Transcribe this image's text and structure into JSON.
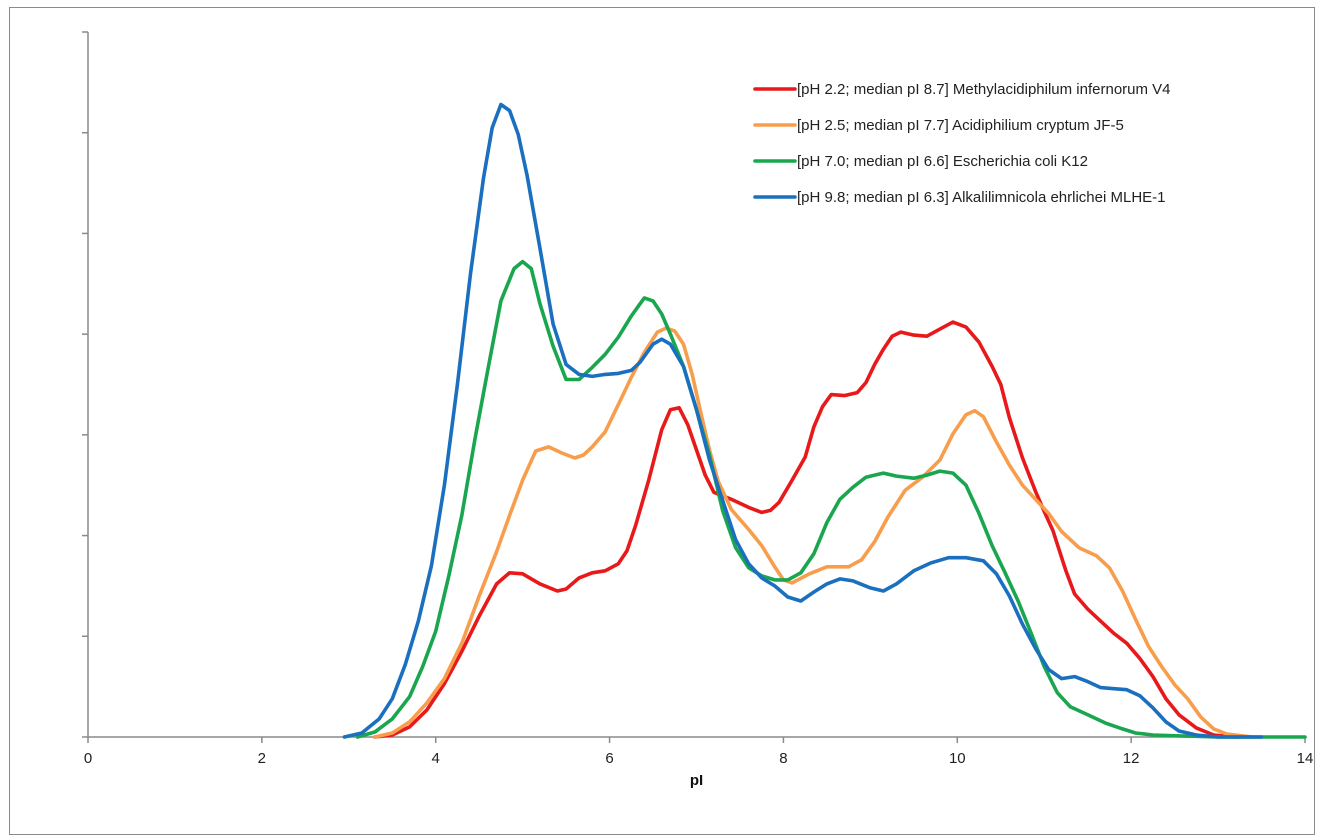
{
  "chart_data": {
    "type": "line",
    "title": "",
    "xlabel": "pI",
    "ylabel": "",
    "xlim": [
      0,
      14
    ],
    "ylim": [
      0,
      7
    ],
    "x_ticks": [
      0,
      2,
      4,
      6,
      8,
      10,
      12,
      14
    ],
    "x_tick_labels": [
      "0",
      "2",
      "4",
      "6",
      "8",
      "10",
      "12",
      "14"
    ],
    "y_ticks": [
      0,
      1,
      2,
      3,
      4,
      5,
      6,
      7
    ],
    "y_tick_labels_shown": false,
    "grid": false,
    "legend_position": "top-right",
    "series": [
      {
        "name": "[pH 2.2; median pI 8.7] Methylacidiphilum infernorum V4",
        "color": "#e8191a",
        "points": [
          [
            3.3,
            0
          ],
          [
            3.5,
            0.02
          ],
          [
            3.7,
            0.1
          ],
          [
            3.9,
            0.27
          ],
          [
            4.1,
            0.53
          ],
          [
            4.3,
            0.85
          ],
          [
            4.5,
            1.2
          ],
          [
            4.7,
            1.52
          ],
          [
            4.85,
            1.63
          ],
          [
            5.0,
            1.62
          ],
          [
            5.2,
            1.52
          ],
          [
            5.4,
            1.45
          ],
          [
            5.5,
            1.47
          ],
          [
            5.65,
            1.58
          ],
          [
            5.8,
            1.63
          ],
          [
            5.95,
            1.65
          ],
          [
            6.1,
            1.72
          ],
          [
            6.2,
            1.85
          ],
          [
            6.3,
            2.1
          ],
          [
            6.45,
            2.55
          ],
          [
            6.6,
            3.05
          ],
          [
            6.7,
            3.25
          ],
          [
            6.8,
            3.27
          ],
          [
            6.9,
            3.1
          ],
          [
            7.0,
            2.85
          ],
          [
            7.1,
            2.6
          ],
          [
            7.2,
            2.43
          ],
          [
            7.4,
            2.36
          ],
          [
            7.6,
            2.28
          ],
          [
            7.75,
            2.23
          ],
          [
            7.85,
            2.25
          ],
          [
            7.95,
            2.33
          ],
          [
            8.1,
            2.55
          ],
          [
            8.25,
            2.78
          ],
          [
            8.35,
            3.08
          ],
          [
            8.45,
            3.28
          ],
          [
            8.55,
            3.4
          ],
          [
            8.7,
            3.39
          ],
          [
            8.85,
            3.42
          ],
          [
            8.95,
            3.52
          ],
          [
            9.05,
            3.7
          ],
          [
            9.15,
            3.85
          ],
          [
            9.25,
            3.98
          ],
          [
            9.35,
            4.02
          ],
          [
            9.5,
            3.99
          ],
          [
            9.65,
            3.98
          ],
          [
            9.8,
            4.05
          ],
          [
            9.95,
            4.12
          ],
          [
            10.1,
            4.07
          ],
          [
            10.25,
            3.92
          ],
          [
            10.4,
            3.68
          ],
          [
            10.5,
            3.5
          ],
          [
            10.6,
            3.17
          ],
          [
            10.75,
            2.77
          ],
          [
            10.9,
            2.44
          ],
          [
            11.0,
            2.24
          ],
          [
            11.1,
            2.05
          ],
          [
            11.25,
            1.65
          ],
          [
            11.35,
            1.42
          ],
          [
            11.5,
            1.27
          ],
          [
            11.65,
            1.15
          ],
          [
            11.8,
            1.03
          ],
          [
            11.95,
            0.93
          ],
          [
            12.1,
            0.78
          ],
          [
            12.25,
            0.6
          ],
          [
            12.4,
            0.38
          ],
          [
            12.55,
            0.22
          ],
          [
            12.75,
            0.09
          ],
          [
            12.95,
            0.02
          ],
          [
            13.2,
            0
          ]
        ]
      },
      {
        "name": "[pH 2.5; median pI 7.7] Acidiphilium cryptum JF-5",
        "color": "#f79d4c",
        "points": [
          [
            3.3,
            0
          ],
          [
            3.5,
            0.04
          ],
          [
            3.7,
            0.15
          ],
          [
            3.9,
            0.34
          ],
          [
            4.1,
            0.58
          ],
          [
            4.3,
            0.93
          ],
          [
            4.5,
            1.4
          ],
          [
            4.7,
            1.84
          ],
          [
            4.85,
            2.2
          ],
          [
            5.0,
            2.55
          ],
          [
            5.15,
            2.84
          ],
          [
            5.3,
            2.88
          ],
          [
            5.45,
            2.82
          ],
          [
            5.6,
            2.77
          ],
          [
            5.7,
            2.8
          ],
          [
            5.8,
            2.88
          ],
          [
            5.95,
            3.03
          ],
          [
            6.1,
            3.3
          ],
          [
            6.25,
            3.57
          ],
          [
            6.4,
            3.82
          ],
          [
            6.55,
            4.02
          ],
          [
            6.65,
            4.06
          ],
          [
            6.75,
            4.03
          ],
          [
            6.85,
            3.9
          ],
          [
            6.95,
            3.6
          ],
          [
            7.05,
            3.22
          ],
          [
            7.15,
            2.85
          ],
          [
            7.25,
            2.54
          ],
          [
            7.4,
            2.26
          ],
          [
            7.6,
            2.06
          ],
          [
            7.75,
            1.9
          ],
          [
            7.9,
            1.69
          ],
          [
            8.0,
            1.56
          ],
          [
            8.1,
            1.53
          ],
          [
            8.3,
            1.62
          ],
          [
            8.5,
            1.69
          ],
          [
            8.75,
            1.69
          ],
          [
            8.9,
            1.76
          ],
          [
            9.05,
            1.94
          ],
          [
            9.2,
            2.18
          ],
          [
            9.4,
            2.45
          ],
          [
            9.6,
            2.58
          ],
          [
            9.8,
            2.75
          ],
          [
            9.95,
            3.01
          ],
          [
            10.1,
            3.2
          ],
          [
            10.2,
            3.24
          ],
          [
            10.3,
            3.18
          ],
          [
            10.45,
            2.93
          ],
          [
            10.6,
            2.7
          ],
          [
            10.75,
            2.5
          ],
          [
            10.9,
            2.36
          ],
          [
            11.05,
            2.22
          ],
          [
            11.2,
            2.04
          ],
          [
            11.4,
            1.88
          ],
          [
            11.6,
            1.8
          ],
          [
            11.75,
            1.68
          ],
          [
            11.9,
            1.45
          ],
          [
            12.05,
            1.17
          ],
          [
            12.2,
            0.9
          ],
          [
            12.35,
            0.7
          ],
          [
            12.5,
            0.52
          ],
          [
            12.65,
            0.38
          ],
          [
            12.8,
            0.2
          ],
          [
            12.95,
            0.08
          ],
          [
            13.1,
            0.03
          ],
          [
            13.4,
            0
          ]
        ]
      },
      {
        "name": "[pH 7.0; median pI 6.6] Escherichia coli K12",
        "color": "#1aa64e",
        "points": [
          [
            3.1,
            0
          ],
          [
            3.3,
            0.05
          ],
          [
            3.5,
            0.18
          ],
          [
            3.7,
            0.4
          ],
          [
            3.85,
            0.7
          ],
          [
            4.0,
            1.05
          ],
          [
            4.15,
            1.6
          ],
          [
            4.3,
            2.2
          ],
          [
            4.45,
            2.95
          ],
          [
            4.6,
            3.65
          ],
          [
            4.75,
            4.33
          ],
          [
            4.9,
            4.65
          ],
          [
            5.0,
            4.72
          ],
          [
            5.1,
            4.65
          ],
          [
            5.2,
            4.3
          ],
          [
            5.35,
            3.88
          ],
          [
            5.5,
            3.55
          ],
          [
            5.65,
            3.55
          ],
          [
            5.8,
            3.67
          ],
          [
            5.95,
            3.8
          ],
          [
            6.1,
            3.97
          ],
          [
            6.25,
            4.18
          ],
          [
            6.4,
            4.36
          ],
          [
            6.5,
            4.33
          ],
          [
            6.6,
            4.2
          ],
          [
            6.7,
            4.0
          ],
          [
            6.85,
            3.68
          ],
          [
            7.0,
            3.25
          ],
          [
            7.15,
            2.8
          ],
          [
            7.3,
            2.25
          ],
          [
            7.45,
            1.88
          ],
          [
            7.6,
            1.68
          ],
          [
            7.75,
            1.6
          ],
          [
            7.9,
            1.56
          ],
          [
            8.05,
            1.56
          ],
          [
            8.2,
            1.63
          ],
          [
            8.35,
            1.82
          ],
          [
            8.5,
            2.13
          ],
          [
            8.65,
            2.36
          ],
          [
            8.8,
            2.48
          ],
          [
            8.95,
            2.58
          ],
          [
            9.05,
            2.6
          ],
          [
            9.15,
            2.62
          ],
          [
            9.3,
            2.59
          ],
          [
            9.5,
            2.57
          ],
          [
            9.65,
            2.6
          ],
          [
            9.8,
            2.64
          ],
          [
            9.95,
            2.62
          ],
          [
            10.1,
            2.5
          ],
          [
            10.25,
            2.22
          ],
          [
            10.4,
            1.9
          ],
          [
            10.55,
            1.63
          ],
          [
            10.7,
            1.35
          ],
          [
            10.85,
            1.03
          ],
          [
            11.0,
            0.7
          ],
          [
            11.15,
            0.44
          ],
          [
            11.3,
            0.3
          ],
          [
            11.5,
            0.22
          ],
          [
            11.7,
            0.14
          ],
          [
            11.9,
            0.08
          ],
          [
            12.05,
            0.04
          ],
          [
            12.25,
            0.02
          ],
          [
            12.6,
            0.01
          ],
          [
            13,
            0
          ],
          [
            14,
            0
          ]
        ]
      },
      {
        "name": "[pH 9.8; median pI 6.3] Alkalilimnicola ehrlichei MLHE-1",
        "color": "#1a70bf",
        "points": [
          [
            2.95,
            0
          ],
          [
            3.15,
            0.04
          ],
          [
            3.35,
            0.18
          ],
          [
            3.5,
            0.38
          ],
          [
            3.65,
            0.72
          ],
          [
            3.8,
            1.15
          ],
          [
            3.95,
            1.7
          ],
          [
            4.1,
            2.5
          ],
          [
            4.25,
            3.5
          ],
          [
            4.4,
            4.6
          ],
          [
            4.55,
            5.55
          ],
          [
            4.65,
            6.05
          ],
          [
            4.75,
            6.28
          ],
          [
            4.85,
            6.22
          ],
          [
            4.95,
            5.98
          ],
          [
            5.05,
            5.58
          ],
          [
            5.2,
            4.85
          ],
          [
            5.35,
            4.1
          ],
          [
            5.5,
            3.7
          ],
          [
            5.65,
            3.6
          ],
          [
            5.8,
            3.58
          ],
          [
            5.95,
            3.6
          ],
          [
            6.1,
            3.61
          ],
          [
            6.25,
            3.64
          ],
          [
            6.35,
            3.72
          ],
          [
            6.5,
            3.9
          ],
          [
            6.6,
            3.95
          ],
          [
            6.7,
            3.9
          ],
          [
            6.85,
            3.68
          ],
          [
            7.0,
            3.25
          ],
          [
            7.15,
            2.75
          ],
          [
            7.3,
            2.35
          ],
          [
            7.45,
            1.96
          ],
          [
            7.6,
            1.72
          ],
          [
            7.75,
            1.58
          ],
          [
            7.9,
            1.5
          ],
          [
            8.05,
            1.39
          ],
          [
            8.2,
            1.35
          ],
          [
            8.35,
            1.44
          ],
          [
            8.5,
            1.52
          ],
          [
            8.65,
            1.57
          ],
          [
            8.8,
            1.55
          ],
          [
            9.0,
            1.48
          ],
          [
            9.15,
            1.45
          ],
          [
            9.3,
            1.52
          ],
          [
            9.5,
            1.65
          ],
          [
            9.7,
            1.73
          ],
          [
            9.9,
            1.78
          ],
          [
            10.1,
            1.78
          ],
          [
            10.3,
            1.75
          ],
          [
            10.45,
            1.62
          ],
          [
            10.6,
            1.4
          ],
          [
            10.75,
            1.12
          ],
          [
            10.9,
            0.88
          ],
          [
            11.05,
            0.67
          ],
          [
            11.2,
            0.58
          ],
          [
            11.35,
            0.6
          ],
          [
            11.5,
            0.55
          ],
          [
            11.65,
            0.49
          ],
          [
            11.8,
            0.48
          ],
          [
            11.95,
            0.47
          ],
          [
            12.1,
            0.41
          ],
          [
            12.25,
            0.29
          ],
          [
            12.4,
            0.15
          ],
          [
            12.55,
            0.06
          ],
          [
            12.75,
            0.02
          ],
          [
            13.0,
            0
          ],
          [
            13.5,
            0
          ]
        ]
      }
    ]
  }
}
